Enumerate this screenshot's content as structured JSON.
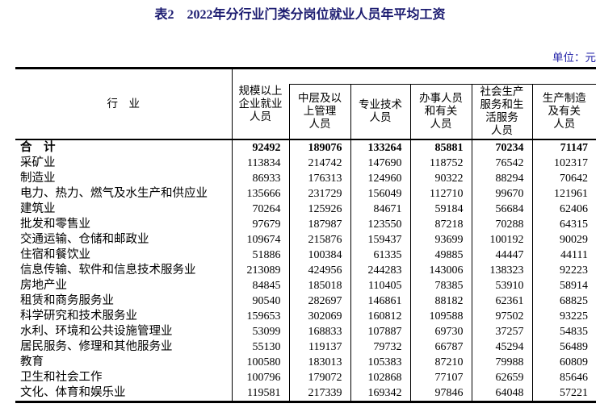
{
  "page": {
    "title": "表2　2022年分行业门类分岗位就业人员年平均工资",
    "unit_label": "单位：元"
  },
  "colors": {
    "title_text": "#1b1b70",
    "unit_text": "#2323a8",
    "table_text": "#000000",
    "border": "#000000",
    "background": "#ffffff"
  },
  "table": {
    "industry_header": "行　业",
    "col2_header": "规模以上\n企业就业\n人员",
    "sub_headers": [
      "中层及以\n上管理\n人员",
      "专业技术\n人员",
      "办事人员\n和有关\n人员",
      "社会生产\n服务和生\n活服务\n人员",
      "生产制造\n及有关\n人员"
    ],
    "rows": [
      {
        "industry": "合　计",
        "bold": true,
        "values": [
          "92492",
          "189076",
          "133264",
          "85881",
          "70234",
          "71147"
        ]
      },
      {
        "industry": "采矿业",
        "bold": false,
        "values": [
          "113834",
          "214742",
          "147690",
          "118752",
          "76542",
          "102317"
        ]
      },
      {
        "industry": "制造业",
        "bold": false,
        "values": [
          "86933",
          "176313",
          "124960",
          "90322",
          "88294",
          "70642"
        ]
      },
      {
        "industry": "电力、热力、燃气及水生产和供应业",
        "bold": false,
        "values": [
          "135666",
          "231729",
          "156049",
          "112710",
          "99670",
          "121961"
        ]
      },
      {
        "industry": "建筑业",
        "bold": false,
        "values": [
          "70264",
          "125926",
          "84671",
          "59184",
          "56684",
          "62406"
        ]
      },
      {
        "industry": "批发和零售业",
        "bold": false,
        "values": [
          "97679",
          "187987",
          "123550",
          "87218",
          "70288",
          "64315"
        ]
      },
      {
        "industry": "交通运输、仓储和邮政业",
        "bold": false,
        "values": [
          "109674",
          "215876",
          "159437",
          "93699",
          "100192",
          "90029"
        ]
      },
      {
        "industry": "住宿和餐饮业",
        "bold": false,
        "values": [
          "51886",
          "100384",
          "61335",
          "49885",
          "44447",
          "44111"
        ]
      },
      {
        "industry": "信息传输、软件和信息技术服务业",
        "bold": false,
        "values": [
          "213089",
          "424956",
          "244283",
          "143006",
          "138323",
          "92223"
        ]
      },
      {
        "industry": "房地产业",
        "bold": false,
        "values": [
          "84845",
          "185018",
          "110405",
          "78385",
          "53910",
          "58914"
        ]
      },
      {
        "industry": "租赁和商务服务业",
        "bold": false,
        "values": [
          "90540",
          "282697",
          "146861",
          "88182",
          "62361",
          "68825"
        ]
      },
      {
        "industry": "科学研究和技术服务业",
        "bold": false,
        "values": [
          "159653",
          "302069",
          "160812",
          "109588",
          "97502",
          "93225"
        ]
      },
      {
        "industry": "水利、环境和公共设施管理业",
        "bold": false,
        "values": [
          "53099",
          "168833",
          "107887",
          "69730",
          "37257",
          "54835"
        ]
      },
      {
        "industry": "居民服务、修理和其他服务业",
        "bold": false,
        "values": [
          "55130",
          "119137",
          "79732",
          "66787",
          "45294",
          "56489"
        ]
      },
      {
        "industry": "教育",
        "bold": false,
        "values": [
          "100580",
          "183013",
          "105383",
          "87210",
          "79988",
          "60809"
        ]
      },
      {
        "industry": "卫生和社会工作",
        "bold": false,
        "values": [
          "100796",
          "179072",
          "102868",
          "77107",
          "62659",
          "85646"
        ]
      },
      {
        "industry": "文化、体育和娱乐业",
        "bold": false,
        "values": [
          "119581",
          "217339",
          "169342",
          "97846",
          "64048",
          "57221"
        ]
      }
    ]
  }
}
